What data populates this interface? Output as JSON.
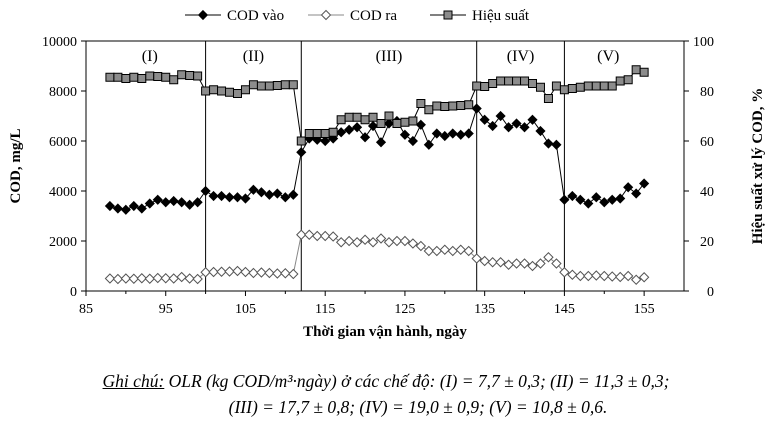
{
  "chart_data": {
    "type": "line",
    "xlabel": "Thời gian vận hành, ngày",
    "ylabel_left": "COD, mg/L",
    "ylabel_right": "Hiệu suất xử lý COD, %",
    "xlim": [
      85,
      160
    ],
    "xticks": [
      "85",
      "95",
      "105",
      "115",
      "125",
      "135",
      "145",
      "155"
    ],
    "ylim_left": [
      0,
      10000
    ],
    "yticks_left": [
      "0",
      "2000",
      "4000",
      "6000",
      "8000",
      "10000"
    ],
    "ylim_right": [
      0,
      100
    ],
    "yticks_right": [
      "0",
      "20",
      "40",
      "60",
      "80",
      "100"
    ],
    "phase_boundaries": [
      100,
      112,
      134,
      145
    ],
    "phases": [
      {
        "label": "(I)",
        "x": 93
      },
      {
        "label": "(II)",
        "x": 106
      },
      {
        "label": "(III)",
        "x": 123
      },
      {
        "label": "(IV)",
        "x": 139.5
      },
      {
        "label": "(V)",
        "x": 150.5
      }
    ],
    "legend_position": "top",
    "series": [
      {
        "name": "COD vào",
        "axis": "left",
        "marker": "filled-diamond",
        "x": [
          88,
          89,
          90,
          91,
          92,
          93,
          94,
          95,
          96,
          97,
          98,
          99,
          100,
          101,
          102,
          103,
          104,
          105,
          106,
          107,
          108,
          109,
          110,
          111,
          112,
          113,
          114,
          115,
          116,
          117,
          118,
          119,
          120,
          121,
          122,
          123,
          124,
          125,
          126,
          127,
          128,
          129,
          130,
          131,
          132,
          133,
          134,
          135,
          136,
          137,
          138,
          139,
          140,
          141,
          142,
          143,
          144,
          145,
          146,
          147,
          148,
          149,
          150,
          151,
          152,
          153,
          154,
          155
        ],
        "values": [
          3400,
          3300,
          3250,
          3400,
          3300,
          3500,
          3650,
          3550,
          3600,
          3550,
          3450,
          3550,
          4000,
          3800,
          3800,
          3750,
          3750,
          3700,
          4050,
          3950,
          3850,
          3900,
          3750,
          3850,
          5550,
          6100,
          6050,
          6000,
          6100,
          6350,
          6450,
          6550,
          6150,
          6600,
          5950,
          6700,
          6800,
          6250,
          6000,
          6650,
          5850,
          6300,
          6200,
          6300,
          6250,
          6300,
          7300,
          6850,
          6600,
          7000,
          6550,
          6700,
          6550,
          6850,
          6400,
          5900,
          5850,
          3650,
          3800,
          3650,
          3500,
          3750,
          3550,
          3650,
          3700,
          4150,
          3900,
          4300
        ]
      },
      {
        "name": "COD ra",
        "axis": "left",
        "marker": "open-diamond",
        "x": [
          88,
          89,
          90,
          91,
          92,
          93,
          94,
          95,
          96,
          97,
          98,
          99,
          100,
          101,
          102,
          103,
          104,
          105,
          106,
          107,
          108,
          109,
          110,
          111,
          112,
          113,
          114,
          115,
          116,
          117,
          118,
          119,
          120,
          121,
          122,
          123,
          124,
          125,
          126,
          127,
          128,
          129,
          130,
          131,
          132,
          133,
          134,
          135,
          136,
          137,
          138,
          139,
          140,
          141,
          142,
          143,
          144,
          145,
          146,
          147,
          148,
          149,
          150,
          151,
          152,
          153,
          154,
          155
        ],
        "values": [
          500,
          480,
          500,
          490,
          510,
          490,
          520,
          510,
          500,
          560,
          500,
          480,
          750,
          760,
          770,
          780,
          800,
          760,
          720,
          740,
          720,
          700,
          710,
          680,
          2250,
          2250,
          2200,
          2200,
          2180,
          1950,
          2000,
          1950,
          2050,
          1950,
          2100,
          1950,
          2000,
          2000,
          1900,
          1800,
          1600,
          1600,
          1650,
          1600,
          1650,
          1600,
          1300,
          1200,
          1150,
          1150,
          1050,
          1100,
          1100,
          1000,
          1100,
          1350,
          1100,
          750,
          650,
          600,
          600,
          620,
          600,
          580,
          560,
          600,
          450,
          550
        ]
      },
      {
        "name": "Hiệu suất",
        "axis": "right",
        "marker": "square",
        "x": [
          88,
          89,
          90,
          91,
          92,
          93,
          94,
          95,
          96,
          97,
          98,
          99,
          100,
          101,
          102,
          103,
          104,
          105,
          106,
          107,
          108,
          109,
          110,
          111,
          112,
          113,
          114,
          115,
          116,
          117,
          118,
          119,
          120,
          121,
          122,
          123,
          124,
          125,
          126,
          127,
          128,
          129,
          130,
          131,
          132,
          133,
          134,
          135,
          136,
          137,
          138,
          139,
          140,
          141,
          142,
          143,
          144,
          145,
          146,
          147,
          148,
          149,
          150,
          151,
          152,
          153,
          154,
          155
        ],
        "values": [
          85.5,
          85.5,
          85,
          85.5,
          85,
          86,
          85.8,
          85.5,
          84.5,
          86.5,
          86.2,
          86,
          80,
          80.5,
          80,
          79.5,
          79,
          80.5,
          82.5,
          82,
          82,
          82.2,
          82.5,
          82.5,
          60,
          63,
          63,
          63,
          63.5,
          68.5,
          69.5,
          69.5,
          68.5,
          69.5,
          67,
          70,
          67,
          67.5,
          68,
          75,
          72.5,
          74,
          73.8,
          74,
          74.2,
          74.5,
          82,
          81.8,
          83,
          84,
          84,
          84,
          84,
          83,
          81.5,
          77,
          82,
          80.5,
          81,
          81.5,
          82,
          82,
          82,
          82,
          84,
          84.5,
          88.5,
          87.5
        ]
      }
    ]
  },
  "note": {
    "label": "Ghi chú:",
    "line1": " OLR (kg COD/m³·ngày) ở các chế độ: (I) = 7,7 ± 0,3; (II) = 11,3 ± 0,3;",
    "line2": "(III) = 17,7 ± 0,8; (IV) = 19,0 ± 0,9; (V) = 10,8 ± 0,6."
  }
}
